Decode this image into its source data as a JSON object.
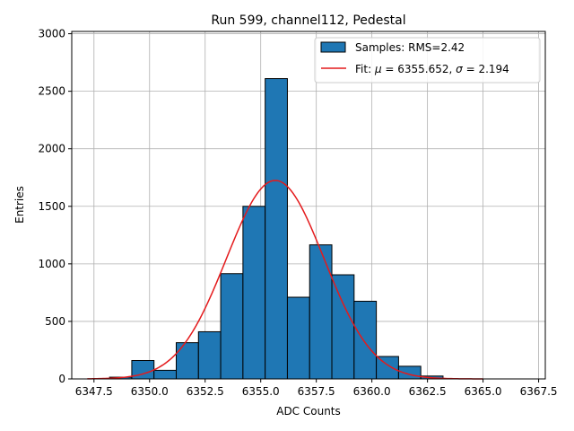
{
  "chart_data": {
    "type": "bar",
    "title": "Run 599, channel112, Pedestal",
    "xlabel": "ADC Counts",
    "ylabel": "Entries",
    "xlim": [
      6346.5,
      6367.8
    ],
    "ylim": [
      0,
      3020
    ],
    "grid": true,
    "legend_position": "top-right",
    "bar_color": "#1f77b4",
    "fit_color": "#e41a1c",
    "xticks": [
      6347.5,
      6350.0,
      6352.5,
      6355.0,
      6357.5,
      6360.0,
      6362.5,
      6365.0,
      6367.5
    ],
    "xtick_labels": [
      "6347.5",
      "6350.0",
      "6352.5",
      "6355.0",
      "6357.5",
      "6360.0",
      "6362.5",
      "6365.0",
      "6367.5"
    ],
    "yticks": [
      0,
      500,
      1000,
      1500,
      2000,
      2500,
      3000
    ],
    "ytick_labels": [
      "0",
      "500",
      "1000",
      "1500",
      "2000",
      "2500",
      "3000"
    ],
    "bin_width": 1.0,
    "bin_starts": [
      6348.2,
      6349.2,
      6350.2,
      6351.2,
      6352.2,
      6353.2,
      6354.2,
      6355.2,
      6356.2,
      6357.2,
      6358.2,
      6359.2,
      6360.2,
      6361.2,
      6362.2
    ],
    "values": [
      15,
      160,
      75,
      315,
      410,
      915,
      1500,
      2610,
      710,
      1165,
      905,
      675,
      195,
      110,
      25
    ],
    "fit": {
      "mu": 6355.652,
      "sigma": 2.194,
      "amplitude": 1725,
      "x_start": 6347.2,
      "x_end": 6365.0
    },
    "legend": {
      "samples": "Samples: RMS=2.42",
      "fit_prefix": "Fit: ",
      "fit_mu_symbol": "μ",
      "fit_mu_value": " = 6355.652, ",
      "fit_sigma_symbol": "σ",
      "fit_sigma_value": " = 2.194"
    }
  }
}
